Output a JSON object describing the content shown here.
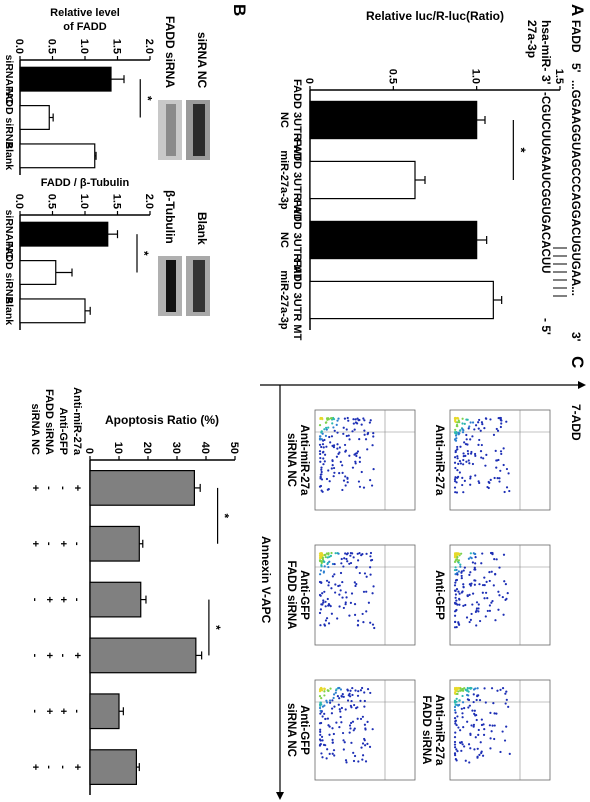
{
  "panels": {
    "A": "A",
    "B": "B",
    "C": "C"
  },
  "sequence": {
    "target_label": "FADD",
    "five_prime": "5'",
    "target_seq": "...GGAAGGUAGCCCAGGACUGUGAA...",
    "three_prime": "3'",
    "mirna_label_1": "hsa-miR-",
    "mirna_label_2": "27a-3p",
    "mirna_three": "3'",
    "mirna_seq": "-CGUCUUGAAUCGGUGACACUU",
    "mirna_five": "- 5'"
  },
  "chart_data": [
    {
      "id": "luciferase",
      "type": "bar",
      "ylabel": "Relative luc/R-luc(Ratio)",
      "ylim": [
        0,
        1.5
      ],
      "yticks": [
        "0",
        "0.5",
        "1.0",
        "1.5"
      ],
      "categories": [
        "FADD 3UTR WT NC",
        "FADD 3UTR WT miR-27a-3p",
        "FADD 3UTR MT NC",
        "FADD 3UTR MT miR-27a-3p"
      ],
      "values": [
        1.0,
        0.63,
        1.0,
        1.1
      ],
      "errors": [
        0.05,
        0.06,
        0.06,
        0.05
      ],
      "fills": [
        "#000000",
        "#ffffff",
        "#000000",
        "#ffffff"
      ],
      "significance": "*"
    },
    {
      "id": "fadd_level",
      "type": "bar",
      "ylabel_1": "Relative level",
      "ylabel_2": "of FADD",
      "ylim": [
        0,
        2.0
      ],
      "yticks": [
        "0.0",
        "0.5",
        "1.0",
        "1.5",
        "2.0"
      ],
      "categories": [
        "siRNA NC",
        "FADD siRNA",
        "Blank"
      ],
      "values": [
        1.4,
        0.45,
        1.15
      ],
      "errors": [
        0.2,
        0.06,
        0.02
      ],
      "fills": [
        "#000000",
        "#ffffff",
        "#ffffff"
      ],
      "significance": "*"
    },
    {
      "id": "fadd_tubulin",
      "type": "bar",
      "ylabel": "FADD / β-Tubulin",
      "ylim": [
        0,
        2.0
      ],
      "yticks": [
        "0.0",
        "0.5",
        "1.0",
        "1.5",
        "2.0"
      ],
      "categories": [
        "siRNA NC",
        "FADD siRNA",
        "Blank"
      ],
      "values": [
        1.35,
        0.55,
        1.0
      ],
      "errors": [
        0.15,
        0.25,
        0.08
      ],
      "fills": [
        "#000000",
        "#ffffff",
        "#ffffff"
      ],
      "significance": "*"
    },
    {
      "id": "apoptosis",
      "type": "bar",
      "ylabel": "Apoptosis Ratio (%)",
      "ylim": [
        0,
        50
      ],
      "yticks": [
        "0",
        "10",
        "20",
        "30",
        "40",
        "50"
      ],
      "row_labels": [
        "Anti-miR-27a",
        "Anti-GFP",
        "FADD siRNA",
        "siRNA NC"
      ],
      "conditions": [
        [
          "+",
          "-",
          "-",
          "+"
        ],
        [
          "-",
          "+",
          "-",
          "+"
        ],
        [
          "-",
          "+",
          "+",
          "-"
        ],
        [
          "+",
          "-",
          "+",
          "-"
        ],
        [
          "-",
          "+",
          "+",
          "-"
        ],
        [
          "+",
          "-",
          "-",
          "+"
        ]
      ],
      "values": [
        36,
        17,
        17.5,
        36.5,
        10,
        16
      ],
      "errors": [
        2,
        1.2,
        1.8,
        2,
        1.5,
        1
      ],
      "fills": [
        "#808080",
        "#808080",
        "#808080",
        "#808080",
        "#808080",
        "#808080"
      ],
      "significance": [
        "*",
        "*"
      ]
    }
  ],
  "blots": {
    "siRNA_NC": "siRNA NC",
    "FADD_siRNA": "FADD siRNA",
    "beta_tubulin": "β-Tubulin",
    "blank": "Blank"
  },
  "flow": {
    "x_axis": "Annexin V-APC",
    "y_axis": "7-ADD",
    "plots": [
      {
        "label_1": "Anti-miR-27a",
        "label_2": ""
      },
      {
        "label_1": "Anti-GFP",
        "label_2": ""
      },
      {
        "label_1": "Anti-miR-27a",
        "label_2": "FADD siRNA"
      },
      {
        "label_1": "Anti-miR-27a",
        "label_2": "siRNA NC"
      },
      {
        "label_1": "Anti-GFP",
        "label_2": "FADD siRNA"
      },
      {
        "label_1": "Anti-GFP",
        "label_2": "siRNA NC"
      }
    ]
  }
}
